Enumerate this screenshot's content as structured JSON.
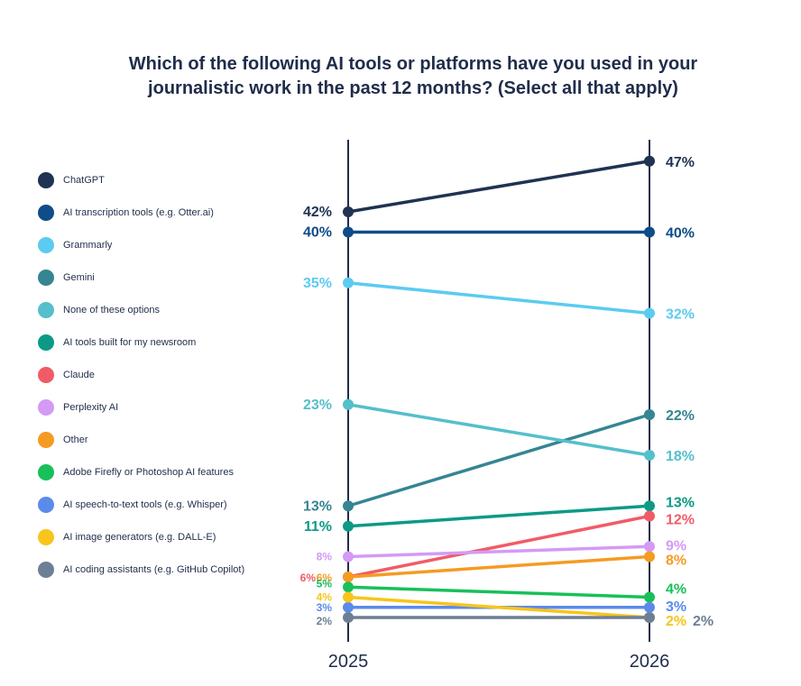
{
  "title": "Which of the following AI tools or platforms have you used in your journalistic work in the past 12 months? (Select all that apply)",
  "chart_data": {
    "type": "line",
    "x": [
      "2025",
      "2026"
    ],
    "series": [
      {
        "name": "ChatGPT",
        "values": [
          42,
          47
        ],
        "labels": [
          "42%",
          "47%"
        ],
        "color": "#1f3352"
      },
      {
        "name": "AI transcription tools (e.g. Otter.ai)",
        "values": [
          40,
          40
        ],
        "labels": [
          "40%",
          "40%"
        ],
        "color": "#0f4c8a"
      },
      {
        "name": "Grammarly",
        "values": [
          35,
          32
        ],
        "labels": [
          "35%",
          "32%"
        ],
        "color": "#5ccbf0"
      },
      {
        "name": "Gemini",
        "values": [
          13,
          22
        ],
        "labels": [
          "13%",
          "22%"
        ],
        "color": "#358593"
      },
      {
        "name": "None of these options",
        "values": [
          23,
          18
        ],
        "labels": [
          "23%",
          "18%"
        ],
        "color": "#55bfcc"
      },
      {
        "name": "AI tools built for my newsroom",
        "values": [
          11,
          13
        ],
        "labels": [
          "11%",
          "13%"
        ],
        "color": "#0c9a85"
      },
      {
        "name": "Claude",
        "values": [
          6,
          12
        ],
        "labels": [
          "6%",
          "12%"
        ],
        "color": "#f15b66"
      },
      {
        "name": "Perplexity AI",
        "values": [
          8,
          9
        ],
        "labels": [
          "8%",
          "9%"
        ],
        "color": "#d49af5"
      },
      {
        "name": "Other",
        "values": [
          6,
          8
        ],
        "labels": [
          "6%",
          "8%"
        ],
        "color": "#f59b22"
      },
      {
        "name": "Adobe Firefly or Photoshop AI features",
        "values": [
          5,
          4
        ],
        "labels": [
          "5%",
          "4%"
        ],
        "color": "#18c05a"
      },
      {
        "name": "AI speech-to-text tools (e.g. Whisper)",
        "values": [
          3,
          3
        ],
        "labels": [
          "3%",
          "3%"
        ],
        "color": "#5b8bea"
      },
      {
        "name": "AI image generators (e.g. DALL-E)",
        "values": [
          4,
          2
        ],
        "labels": [
          "4%",
          "2%"
        ],
        "color": "#f7c51c"
      },
      {
        "name": "AI coding assistants (e.g. GitHub Copilot)",
        "values": [
          2,
          2
        ],
        "labels": [
          "2%",
          "2%"
        ],
        "color": "#6d7f94"
      }
    ],
    "ylim": [
      0,
      50
    ],
    "legend_position": "left"
  }
}
